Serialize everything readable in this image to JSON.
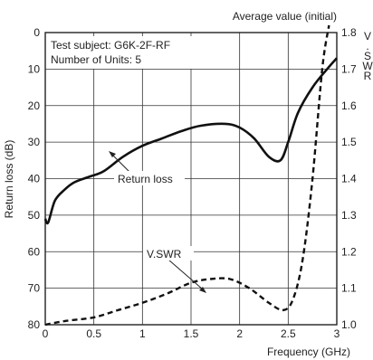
{
  "chart_data": {
    "type": "line",
    "title": "Average value (initial)",
    "xlabel": "Frequency (GHz)",
    "ylabel_left": "Return loss (dB)",
    "ylabel_right": "V.SWR",
    "xlim": [
      0,
      3
    ],
    "ylim_left": [
      0,
      80
    ],
    "ylim_right": [
      1.0,
      1.8
    ],
    "left_axis_inverted": true,
    "grid": true,
    "x_ticks": [
      "0",
      "0.5",
      "1",
      "1.5",
      "2",
      "2.5",
      "3"
    ],
    "left_ticks": [
      "0",
      "10",
      "20",
      "30",
      "40",
      "50",
      "60",
      "70",
      "80"
    ],
    "right_ticks": [
      "1.0",
      "1.1",
      "1.2",
      "1.3",
      "1.4",
      "1.5",
      "1.6",
      "1.7",
      "1.8"
    ],
    "annotation": {
      "subject": "Test subject: G6K-2F-RF",
      "units": "Number of Units: 5"
    },
    "series": [
      {
        "name": "Return loss",
        "axis": "left",
        "style": "solid",
        "x": [
          0,
          0.03,
          0.1,
          0.2,
          0.3,
          0.45,
          0.6,
          0.8,
          1.0,
          1.2,
          1.4,
          1.6,
          1.85,
          2.0,
          2.15,
          2.3,
          2.42,
          2.5,
          2.6,
          2.75,
          2.9,
          3.0
        ],
        "y": [
          51,
          52,
          46,
          43,
          41,
          39.5,
          38,
          34,
          31,
          29,
          27,
          25.5,
          25,
          26,
          29,
          34,
          35,
          30,
          22,
          15,
          10,
          7
        ]
      },
      {
        "name": "V.SWR",
        "axis": "right",
        "style": "dashed",
        "x": [
          0,
          0.2,
          0.5,
          0.75,
          1.0,
          1.25,
          1.5,
          1.7,
          1.9,
          2.1,
          2.3,
          2.45,
          2.55,
          2.65,
          2.75,
          2.85,
          2.92
        ],
        "y": [
          1.0,
          1.01,
          1.02,
          1.04,
          1.06,
          1.085,
          1.115,
          1.125,
          1.125,
          1.1,
          1.06,
          1.04,
          1.07,
          1.18,
          1.4,
          1.7,
          1.82
        ]
      }
    ]
  }
}
